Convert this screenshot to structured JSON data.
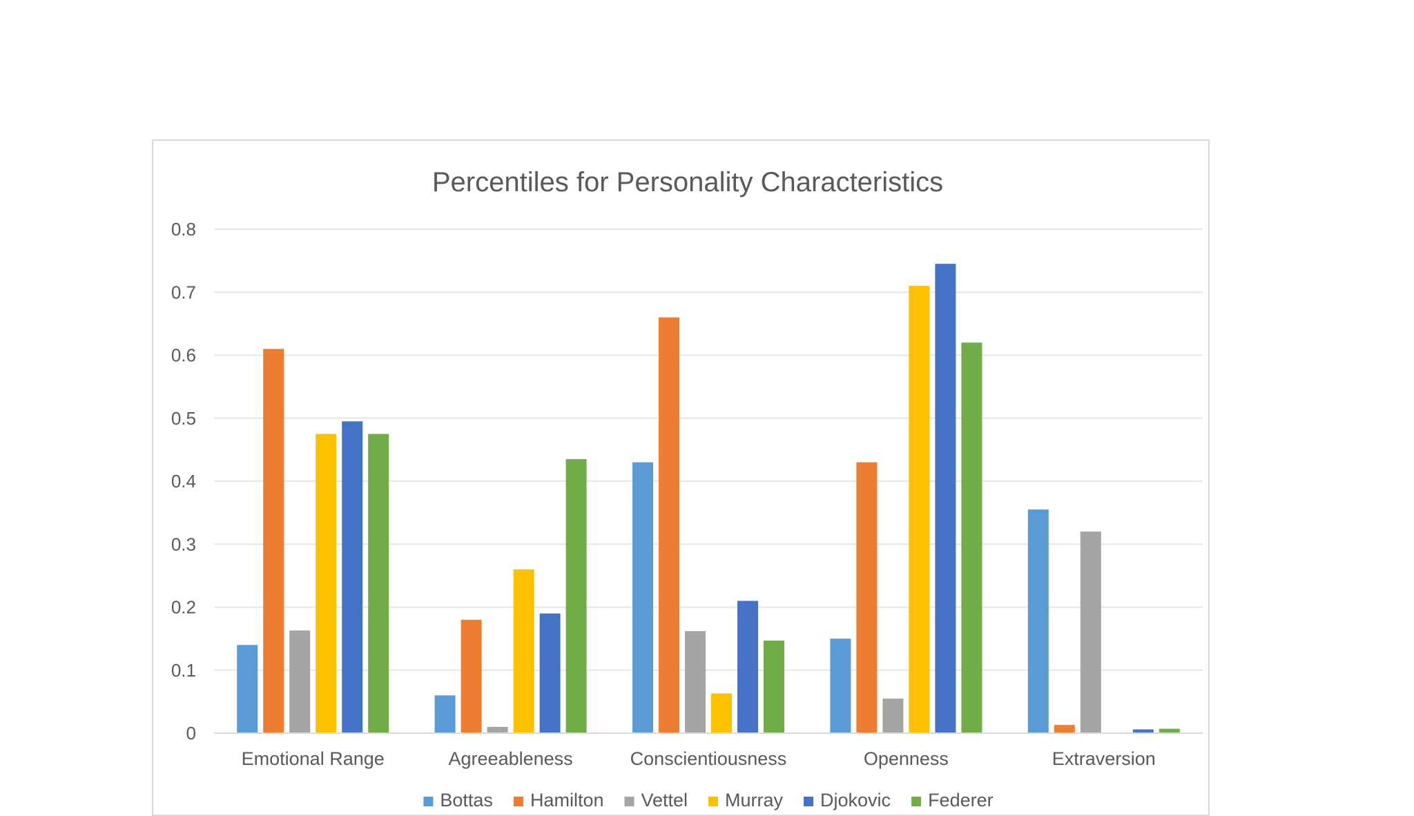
{
  "chart_data": {
    "type": "bar",
    "title": "Percentiles for Personality Characteristics",
    "xlabel": "",
    "ylabel": "",
    "ylim": [
      0,
      0.8
    ],
    "yticks": [
      0,
      0.1,
      0.2,
      0.3,
      0.4,
      0.5,
      0.6,
      0.7,
      0.8
    ],
    "ytick_labels": [
      "0",
      "0.1",
      "0.2",
      "0.3",
      "0.4",
      "0.5",
      "0.6",
      "0.7",
      "0.8"
    ],
    "grid": true,
    "legend_position": "bottom",
    "categories": [
      "Emotional Range",
      "Agreeableness",
      "Conscientiousness",
      "Openness",
      "Extraversion"
    ],
    "series": [
      {
        "name": "Bottas",
        "color": "#5b9bd5",
        "values": [
          0.14,
          0.06,
          0.43,
          0.15,
          0.355
        ]
      },
      {
        "name": "Hamilton",
        "color": "#ed7d31",
        "values": [
          0.61,
          0.18,
          0.66,
          0.43,
          0.013
        ]
      },
      {
        "name": "Vettel",
        "color": "#a5a5a5",
        "values": [
          0.163,
          0.01,
          0.162,
          0.055,
          0.32
        ]
      },
      {
        "name": "Murray",
        "color": "#ffc000",
        "values": [
          0.475,
          0.26,
          0.063,
          0.71,
          0.0
        ]
      },
      {
        "name": "Djokovic",
        "color": "#4472c4",
        "values": [
          0.495,
          0.19,
          0.21,
          0.745,
          0.006
        ]
      },
      {
        "name": "Federer",
        "color": "#70ad47",
        "values": [
          0.475,
          0.435,
          0.147,
          0.62,
          0.007
        ]
      }
    ]
  }
}
